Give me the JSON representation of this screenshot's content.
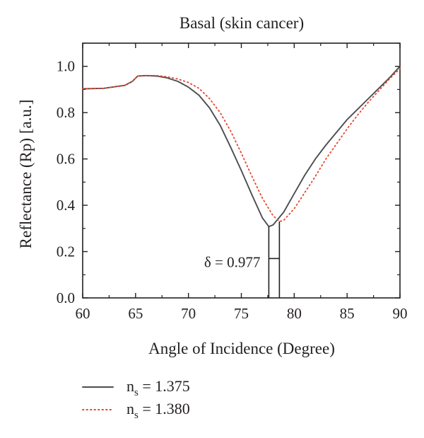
{
  "chart_data": {
    "type": "line",
    "title": "Basal (skin cancer)",
    "xlabel": "Angle of Incidence (Degree)",
    "ylabel": "Reflectance (Rp) [a.u.]",
    "xlim": [
      60,
      90
    ],
    "ylim": [
      0,
      1.1
    ],
    "x_ticks": [
      60,
      65,
      70,
      75,
      80,
      85,
      90
    ],
    "y_ticks": [
      0.0,
      0.2,
      0.4,
      0.6,
      0.8,
      1.0
    ],
    "x_tick_labels": [
      "60",
      "65",
      "70",
      "75",
      "80",
      "85",
      "90"
    ],
    "y_tick_labels": [
      "0.0",
      "0.2",
      "0.4",
      "0.6",
      "0.8",
      "1.0"
    ],
    "grid": false,
    "legend_position": "bottom-left, below plot",
    "series": [
      {
        "name": "n_s = 1.375",
        "legend_label": {
          "base": "n",
          "sub": "s",
          "rest": " = 1.375"
        },
        "color": "#4d4d4f",
        "style": "solid",
        "points": [
          [
            60,
            0.903
          ],
          [
            62,
            0.905
          ],
          [
            64,
            0.918
          ],
          [
            64.7,
            0.935
          ],
          [
            65.2,
            0.958
          ],
          [
            66,
            0.96
          ],
          [
            67,
            0.958
          ],
          [
            68,
            0.95
          ],
          [
            69,
            0.935
          ],
          [
            70,
            0.91
          ],
          [
            71,
            0.875
          ],
          [
            72,
            0.82
          ],
          [
            73,
            0.745
          ],
          [
            74,
            0.65
          ],
          [
            75,
            0.55
          ],
          [
            76,
            0.445
          ],
          [
            77,
            0.345
          ],
          [
            77.6,
            0.308
          ],
          [
            78,
            0.315
          ],
          [
            79,
            0.37
          ],
          [
            80,
            0.45
          ],
          [
            81,
            0.53
          ],
          [
            82,
            0.6
          ],
          [
            83,
            0.66
          ],
          [
            84,
            0.715
          ],
          [
            85,
            0.77
          ],
          [
            86,
            0.815
          ],
          [
            87,
            0.86
          ],
          [
            88,
            0.905
          ],
          [
            89,
            0.95
          ],
          [
            90,
            1.0
          ]
        ]
      },
      {
        "name": "n_s = 1.380",
        "legend_label": {
          "base": "n",
          "sub": "s",
          "rest": " = 1.380"
        },
        "color": "#e8452c",
        "style": "dotted",
        "points": [
          [
            60,
            0.903
          ],
          [
            62,
            0.905
          ],
          [
            64,
            0.918
          ],
          [
            64.7,
            0.935
          ],
          [
            65.2,
            0.958
          ],
          [
            66,
            0.96
          ],
          [
            67,
            0.96
          ],
          [
            68,
            0.955
          ],
          [
            69,
            0.945
          ],
          [
            70,
            0.93
          ],
          [
            71,
            0.905
          ],
          [
            72,
            0.86
          ],
          [
            73,
            0.8
          ],
          [
            74,
            0.72
          ],
          [
            75,
            0.625
          ],
          [
            76,
            0.525
          ],
          [
            77,
            0.43
          ],
          [
            78,
            0.355
          ],
          [
            78.6,
            0.33
          ],
          [
            79,
            0.335
          ],
          [
            80,
            0.385
          ],
          [
            81,
            0.455
          ],
          [
            82,
            0.525
          ],
          [
            83,
            0.6
          ],
          [
            84,
            0.665
          ],
          [
            85,
            0.73
          ],
          [
            86,
            0.79
          ],
          [
            87,
            0.845
          ],
          [
            88,
            0.895
          ],
          [
            89,
            0.945
          ],
          [
            90,
            0.99
          ]
        ]
      }
    ],
    "annotations": [
      {
        "text": "δ = 0.977",
        "x_left": 77.6,
        "x_right": 78.6,
        "y_marker": 0.17
      }
    ]
  }
}
